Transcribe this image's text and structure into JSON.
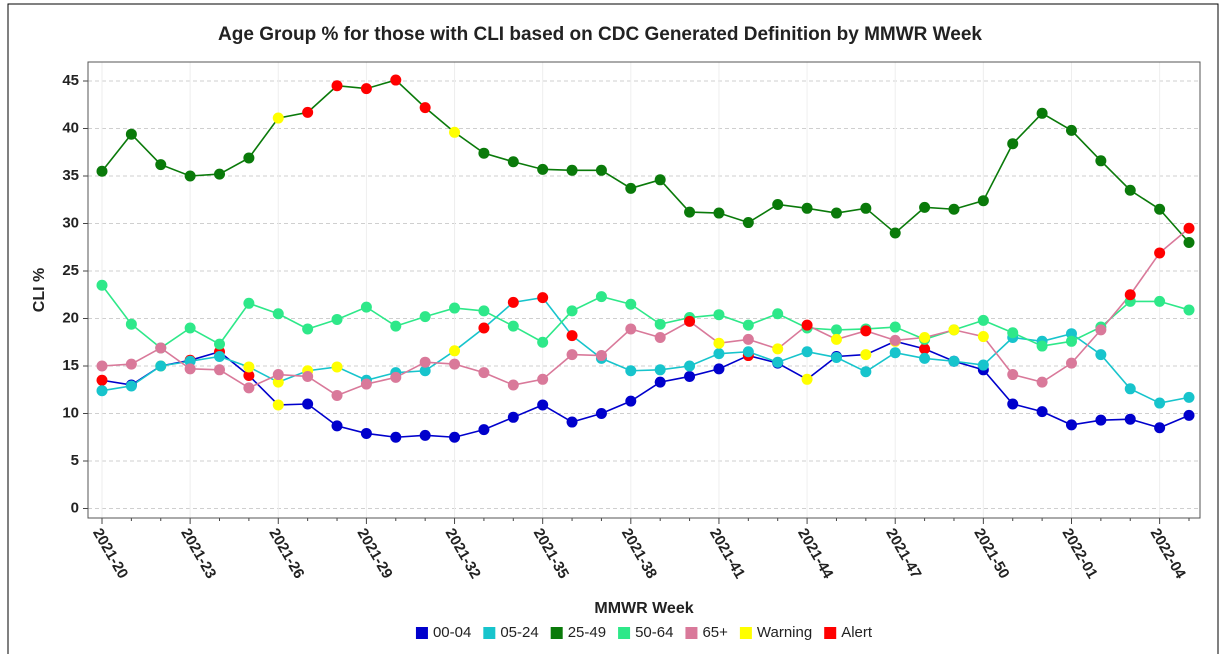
{
  "chart_data": {
    "type": "line",
    "title": "Age Group % for those with CLI based on CDC Generated Definition by MMWR Week",
    "x_label": "MMWR Week",
    "y_label": "CLI %",
    "categories": [
      "2021-20",
      null,
      null,
      "2021-23",
      null,
      null,
      "2021-26",
      null,
      null,
      "2021-29",
      null,
      null,
      "2021-32",
      null,
      null,
      "2021-35",
      null,
      null,
      "2021-38",
      null,
      null,
      "2021-41",
      null,
      null,
      "2021-44",
      null,
      null,
      "2021-47",
      null,
      null,
      "2021-50",
      null,
      null,
      "2022-01",
      null,
      null,
      "2022-04",
      null
    ],
    "ylim": [
      -1,
      47
    ],
    "yticks": [
      0,
      5,
      10,
      15,
      20,
      25,
      30,
      35,
      40,
      45
    ],
    "grid": true,
    "series": [
      {
        "name": "00-04",
        "color": "#0000cc",
        "values": [
          13.5,
          13.0,
          15.0,
          15.6,
          16.5,
          14.0,
          10.9,
          11.0,
          8.7,
          7.9,
          7.5,
          7.7,
          7.5,
          8.3,
          9.6,
          10.9,
          9.1,
          10.0,
          11.3,
          13.3,
          13.9,
          14.7,
          16.1,
          15.3,
          13.6,
          16.0,
          16.2,
          17.6,
          16.8,
          15.5,
          14.6,
          11.0,
          10.2,
          8.8,
          9.3,
          9.4,
          8.5,
          9.8
        ]
      },
      {
        "name": "05-24",
        "color": "#17c4cc",
        "values": [
          12.4,
          12.9,
          15.0,
          15.5,
          16.0,
          14.9,
          13.3,
          14.5,
          14.9,
          13.5,
          14.3,
          14.5,
          16.6,
          19.0,
          21.7,
          22.2,
          18.2,
          15.8,
          14.5,
          14.6,
          15.0,
          16.3,
          16.5,
          15.4,
          16.5,
          15.9,
          14.4,
          16.4,
          15.8,
          15.5,
          15.1,
          18.0,
          17.6,
          18.4,
          16.2,
          12.6,
          11.1,
          11.7
        ]
      },
      {
        "name": "25-49",
        "color": "#0a7a0a",
        "values": [
          35.5,
          39.4,
          36.2,
          35.0,
          35.2,
          36.9,
          41.1,
          41.7,
          44.5,
          44.2,
          45.1,
          42.2,
          39.6,
          37.4,
          36.5,
          35.7,
          35.6,
          35.6,
          33.7,
          34.6,
          31.2,
          31.1,
          30.1,
          32.0,
          31.6,
          31.1,
          31.6,
          29.0,
          31.7,
          31.5,
          32.4,
          38.4,
          41.6,
          39.8,
          36.6,
          33.5,
          31.5,
          28.0
        ]
      },
      {
        "name": "50-64",
        "color": "#2ee889",
        "values": [
          23.5,
          19.4,
          16.9,
          19.0,
          17.3,
          21.6,
          20.5,
          18.9,
          19.9,
          21.2,
          19.2,
          20.2,
          21.1,
          20.8,
          19.2,
          17.5,
          20.8,
          22.3,
          21.5,
          19.4,
          20.1,
          20.4,
          19.3,
          20.5,
          19.0,
          18.8,
          18.9,
          19.1,
          17.8,
          18.8,
          19.8,
          18.5,
          17.1,
          17.6,
          19.1,
          21.8,
          21.8,
          20.9
        ]
      },
      {
        "name": "65+",
        "color": "#d9799a",
        "values": [
          15.0,
          15.2,
          16.9,
          14.7,
          14.6,
          12.7,
          14.1,
          13.9,
          11.9,
          13.1,
          13.8,
          15.4,
          15.2,
          14.3,
          13.0,
          13.6,
          16.2,
          16.1,
          18.9,
          18.0,
          19.7,
          17.4,
          17.8,
          16.8,
          19.3,
          17.8,
          18.7,
          17.7,
          18.0,
          18.8,
          18.1,
          14.1,
          13.3,
          15.3,
          18.8,
          22.5,
          26.9,
          29.5
        ]
      }
    ],
    "flags": [
      {
        "name": "Warning",
        "color": "#ffff00",
        "points": {
          "00-04": [
            2,
            6,
            24,
            26,
            27
          ],
          "05-24": [
            5,
            6,
            7,
            8,
            12
          ],
          "25-49": [
            6,
            12
          ],
          "65+": [
            21,
            23,
            25,
            28,
            29,
            30
          ]
        }
      },
      {
        "name": "Alert",
        "color": "#ff0000",
        "points": {
          "00-04": [
            0,
            3,
            4,
            5,
            22,
            28
          ],
          "05-24": [
            13,
            14,
            15,
            16
          ],
          "25-49": [
            7,
            8,
            9,
            10,
            11
          ],
          "65+": [
            20,
            24,
            26,
            35,
            36,
            37
          ]
        }
      }
    ]
  }
}
